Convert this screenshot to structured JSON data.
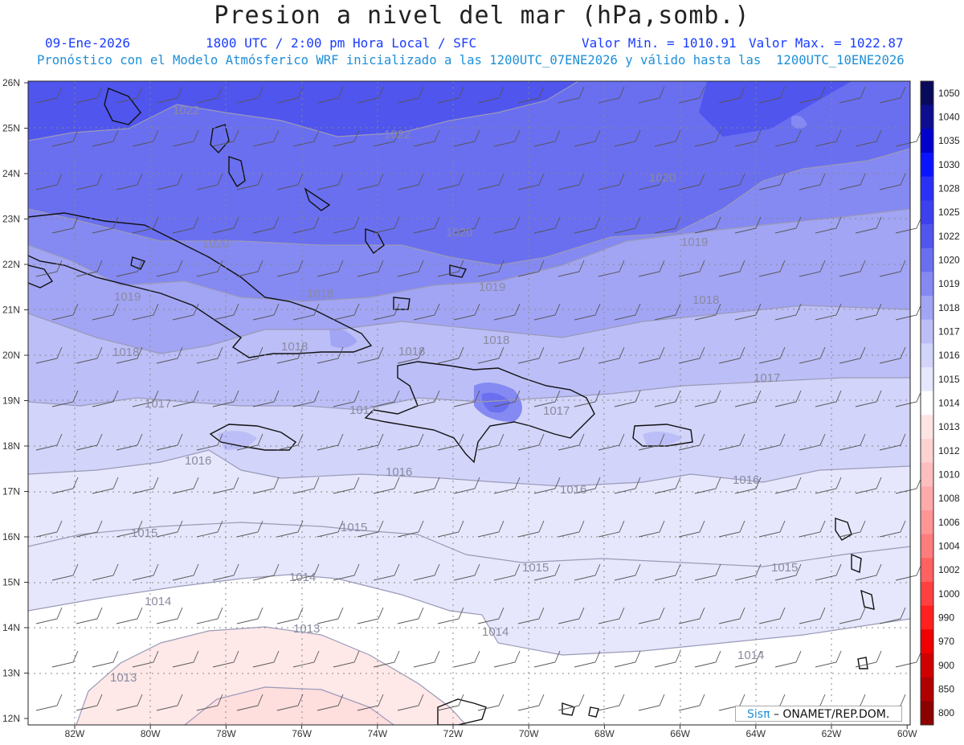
{
  "header": {
    "title": "Presion a nivel del mar (hPa,somb.)",
    "date": "09-Ene-2026",
    "time_label": "1800 UTC / 2:00 pm Hora Local / SFC",
    "min_label": "Valor Min. = 1010.91",
    "max_label": "Valor Max. = 1022.87",
    "model_info": "Pronóstico con el Modelo Atmósferico WRF inicializado a las 1200UTC_07ENE2026 y válido hasta las  1200UTC_10ENE2026"
  },
  "map": {
    "lon_labels": [
      "82W",
      "80W",
      "78W",
      "76W",
      "74W",
      "72W",
      "70W",
      "68W",
      "66W",
      "64W",
      "62W",
      "60W"
    ],
    "lat_labels": [
      "26N",
      "25N",
      "24N",
      "23N",
      "22N",
      "21N",
      "20N",
      "19N",
      "18N",
      "17N",
      "16N",
      "15N",
      "14N",
      "13N",
      "12N"
    ],
    "contour_labels": [
      "1022",
      "1022",
      "1020",
      "1020",
      "1020",
      "1019",
      "1019",
      "1019",
      "1018",
      "1018",
      "1018",
      "1018",
      "1018",
      "1018",
      "1017",
      "1017",
      "1017",
      "1017",
      "1016",
      "1016",
      "1016",
      "1016",
      "1015",
      "1015",
      "1015",
      "1015",
      "1014",
      "1014",
      "1014",
      "1014",
      "1013",
      "1013"
    ]
  },
  "colorbar": {
    "levels": [
      "1050",
      "1040",
      "1035",
      "1030",
      "1028",
      "1025",
      "1022",
      "1020",
      "1019",
      "1018",
      "1017",
      "1016",
      "1015",
      "1014",
      "1013",
      "1012",
      "1010",
      "1008",
      "1006",
      "1004",
      "1002",
      "1000",
      "990",
      "970",
      "900",
      "850",
      "800"
    ],
    "colors": [
      "#0a0a5a",
      "#0d0d8f",
      "#0000cc",
      "#0a14ff",
      "#2a30f5",
      "#3c40ef",
      "#5055ee",
      "#6a6ff0",
      "#8589f2",
      "#a2a5f4",
      "#bcbef7",
      "#d2d4fa",
      "#e6e7fc",
      "#ffffff",
      "#ffe4e4",
      "#ffd2d2",
      "#ffbebe",
      "#ffaaaa",
      "#ff9595",
      "#ff7c7c",
      "#ff6060",
      "#ff4040",
      "#ff2020",
      "#f00000",
      "#d00000",
      "#b00000",
      "#8c0000"
    ]
  },
  "credit": {
    "brand": "Sisπ",
    "org": " – ONAMET/REP.DOM."
  }
}
